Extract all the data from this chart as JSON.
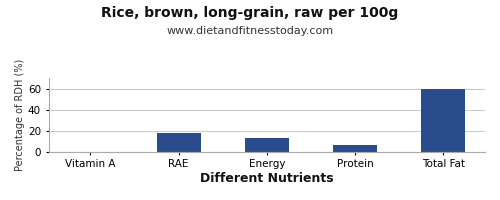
{
  "title": "Rice, brown, long-grain, raw per 100g",
  "subtitle": "www.dietandfitnesstoday.com",
  "xlabel": "Different Nutrients",
  "ylabel": "Percentage of RDH (%)",
  "categories": [
    "Vitamin A",
    "RAE",
    "Energy",
    "Protein",
    "Total Fat"
  ],
  "values": [
    0,
    18,
    13,
    6,
    60
  ],
  "bar_color": "#2b4c8c",
  "ylim": [
    0,
    70
  ],
  "yticks": [
    0,
    20,
    40,
    60
  ],
  "background_color": "#ffffff",
  "grid_color": "#cccccc",
  "title_fontsize": 10,
  "subtitle_fontsize": 8,
  "xlabel_fontsize": 9,
  "ylabel_fontsize": 7,
  "tick_fontsize": 7.5,
  "border_color": "#aaaaaa"
}
